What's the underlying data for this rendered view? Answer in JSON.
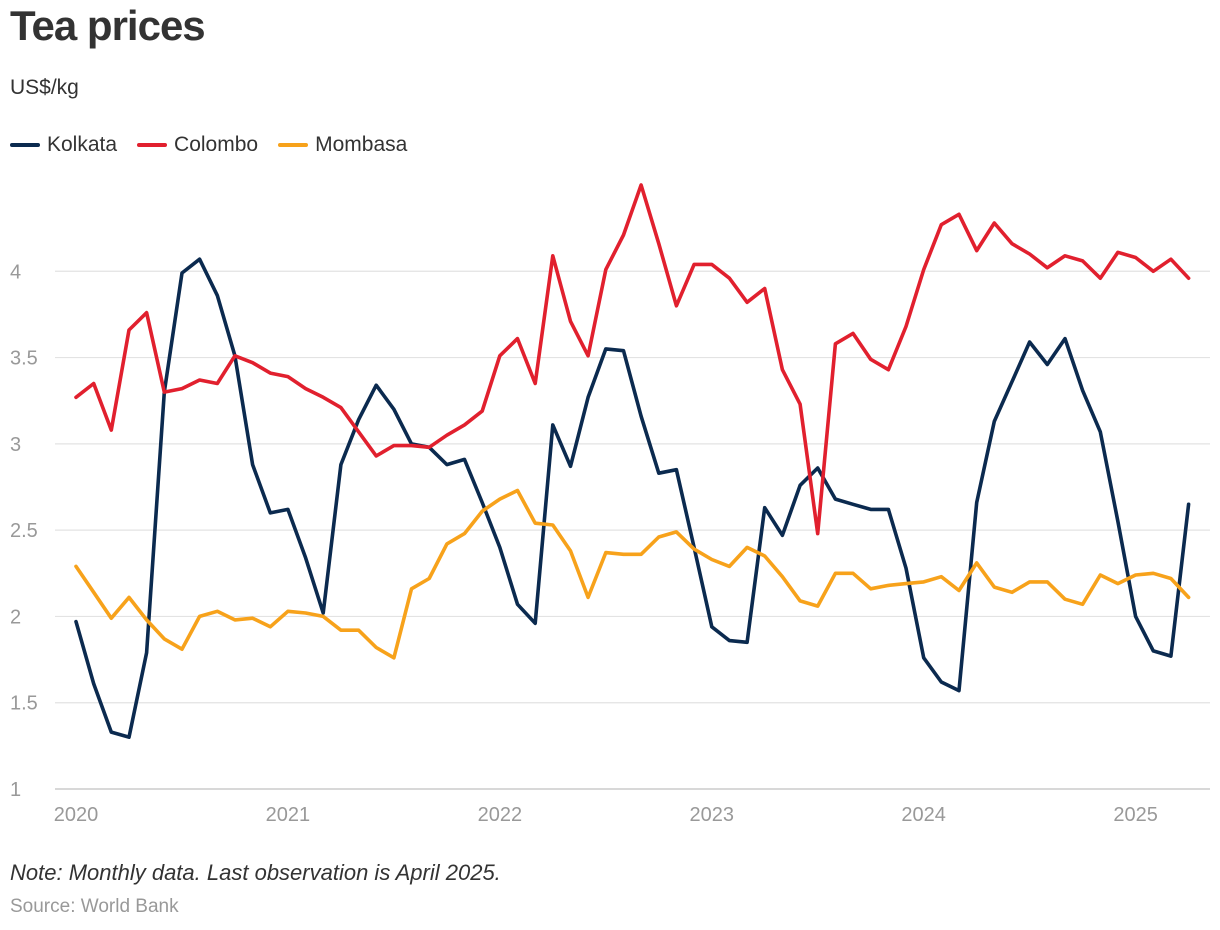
{
  "chart_data": {
    "type": "line",
    "title": "Tea prices",
    "subtitle": "US$/kg",
    "ylabel": "US$/kg",
    "xlabel": "",
    "ylim": [
      1,
      4.5
    ],
    "yticks": [
      1,
      1.5,
      2,
      2.5,
      3,
      3.5,
      4
    ],
    "ytick_labels": [
      "1",
      "1.5",
      "2",
      "2.5",
      "3",
      "3.5",
      "4"
    ],
    "xticks": [
      "2020",
      "2021",
      "2022",
      "2023",
      "2024",
      "2025"
    ],
    "x_start": "2020-01",
    "x_end": "2025-04",
    "grid": true,
    "legend_position": "top-left",
    "series": [
      {
        "name": "Kolkata",
        "color": "#0b2a4f",
        "values": [
          1.97,
          1.61,
          1.33,
          1.3,
          1.79,
          3.3,
          3.99,
          4.07,
          3.86,
          3.51,
          2.88,
          2.6,
          2.62,
          2.34,
          2.02,
          2.88,
          3.14,
          3.34,
          3.2,
          3.0,
          2.98,
          2.88,
          2.91,
          2.66,
          2.4,
          2.07,
          1.96,
          3.11,
          2.87,
          3.27,
          3.55,
          3.54,
          3.16,
          2.83,
          2.85,
          2.4,
          1.94,
          1.86,
          1.85,
          2.63,
          2.47,
          2.76,
          2.86,
          2.68,
          2.65,
          2.62,
          2.62,
          2.28,
          1.76,
          1.62,
          1.57,
          2.66,
          3.13,
          3.36,
          3.59,
          3.46,
          3.61,
          3.31,
          3.07,
          2.55,
          2.0,
          1.8,
          1.77,
          2.65
        ]
      },
      {
        "name": "Colombo",
        "color": "#e1202e",
        "values": [
          3.27,
          3.35,
          3.08,
          3.66,
          3.76,
          3.3,
          3.32,
          3.37,
          3.35,
          3.51,
          3.47,
          3.41,
          3.39,
          3.32,
          3.27,
          3.21,
          3.07,
          2.93,
          2.99,
          2.99,
          2.98,
          3.05,
          3.11,
          3.19,
          3.51,
          3.61,
          3.35,
          4.09,
          3.71,
          3.51,
          4.01,
          4.21,
          4.5,
          4.16,
          3.8,
          4.04,
          4.04,
          3.96,
          3.82,
          3.9,
          3.43,
          3.23,
          2.48,
          3.58,
          3.64,
          3.49,
          3.43,
          3.68,
          4.01,
          4.27,
          4.33,
          4.12,
          4.28,
          4.16,
          4.1,
          4.02,
          4.09,
          4.06,
          3.96,
          4.11,
          4.08,
          4.0,
          4.07,
          3.96
        ]
      },
      {
        "name": "Mombasa",
        "color": "#f7a21b",
        "values": [
          2.29,
          2.14,
          1.99,
          2.11,
          1.98,
          1.87,
          1.81,
          2.0,
          2.03,
          1.98,
          1.99,
          1.94,
          2.03,
          2.02,
          2.0,
          1.92,
          1.92,
          1.82,
          1.76,
          2.16,
          2.22,
          2.42,
          2.48,
          2.61,
          2.68,
          2.73,
          2.54,
          2.53,
          2.38,
          2.11,
          2.37,
          2.36,
          2.36,
          2.46,
          2.49,
          2.39,
          2.33,
          2.29,
          2.4,
          2.35,
          2.23,
          2.09,
          2.06,
          2.25,
          2.25,
          2.16,
          2.18,
          2.19,
          2.2,
          2.23,
          2.15,
          2.31,
          2.17,
          2.14,
          2.2,
          2.2,
          2.1,
          2.07,
          2.24,
          2.19,
          2.24,
          2.25,
          2.22,
          2.11
        ]
      }
    ]
  },
  "footer": {
    "note": "Note: Monthly data. Last observation is April 2025.",
    "source": "Source: World Bank"
  }
}
